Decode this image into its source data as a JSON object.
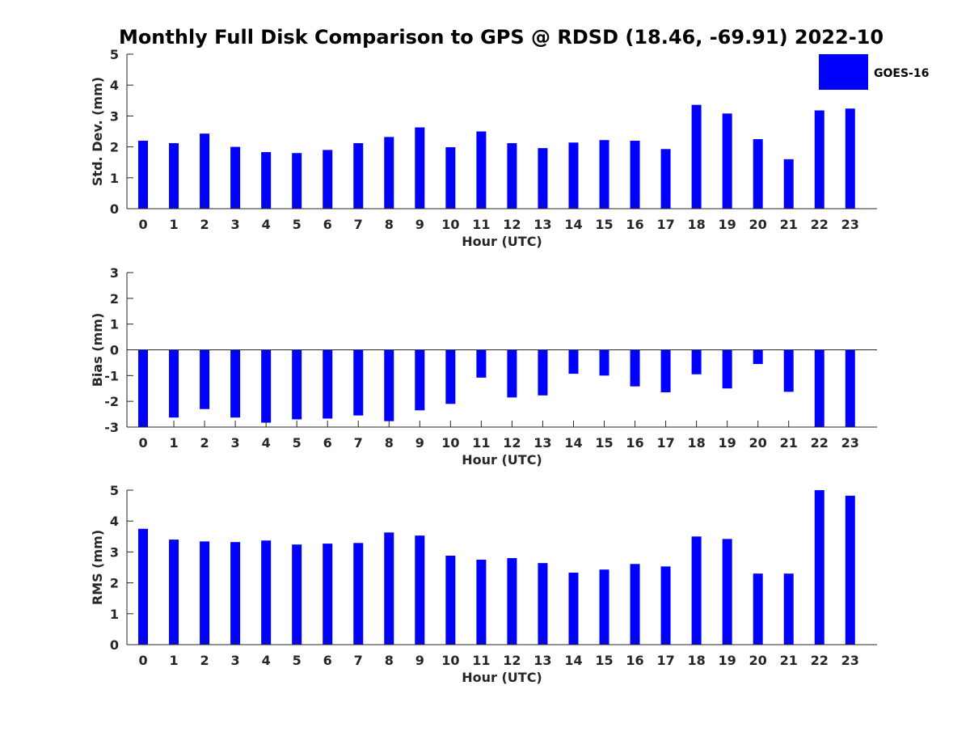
{
  "title": "Monthly Full Disk Comparison to GPS @ RDSD (18.46, -69.91) 2022-10",
  "legend": {
    "label": "GOES-16",
    "color": "#0000ff"
  },
  "chart_data": [
    {
      "type": "bar",
      "title": "Monthly Full Disk Comparison to GPS @ RDSD (18.46, -69.91) 2022-10",
      "xlabel": "Hour (UTC)",
      "ylabel": "Std. Dev. (mm)",
      "ylim": [
        0,
        5
      ],
      "yticks": [
        0,
        1,
        2,
        3,
        4,
        5
      ],
      "categories": [
        "0",
        "1",
        "2",
        "3",
        "4",
        "5",
        "6",
        "7",
        "8",
        "9",
        "10",
        "11",
        "12",
        "13",
        "14",
        "15",
        "16",
        "17",
        "18",
        "19",
        "20",
        "21",
        "22",
        "23"
      ],
      "series": [
        {
          "name": "GOES-16",
          "color": "#0000ff",
          "values": [
            2.2,
            2.12,
            2.43,
            2.0,
            1.83,
            1.8,
            1.9,
            2.12,
            2.32,
            2.63,
            1.99,
            2.5,
            2.12,
            1.96,
            2.14,
            2.22,
            2.2,
            1.93,
            3.36,
            3.08,
            2.25,
            1.6,
            3.18,
            3.24
          ]
        }
      ],
      "legend": "top-right",
      "grid": false
    },
    {
      "type": "bar",
      "xlabel": "Hour (UTC)",
      "ylabel": "Bias (mm)",
      "ylim": [
        -3,
        3
      ],
      "yticks": [
        -3,
        -2,
        -1,
        0,
        1,
        2,
        3
      ],
      "categories": [
        "0",
        "1",
        "2",
        "3",
        "4",
        "5",
        "6",
        "7",
        "8",
        "9",
        "10",
        "11",
        "12",
        "13",
        "14",
        "15",
        "16",
        "17",
        "18",
        "19",
        "20",
        "21",
        "22",
        "23"
      ],
      "series": [
        {
          "name": "GOES-16",
          "color": "#0000ff",
          "values": [
            -3.0,
            -2.63,
            -2.3,
            -2.63,
            -2.83,
            -2.7,
            -2.67,
            -2.55,
            -2.77,
            -2.35,
            -2.1,
            -1.08,
            -1.85,
            -1.77,
            -0.93,
            -1.0,
            -1.42,
            -1.65,
            -0.95,
            -1.5,
            -0.55,
            -1.63,
            -3.0,
            -3.0
          ]
        }
      ],
      "grid": false
    },
    {
      "type": "bar",
      "xlabel": "Hour (UTC)",
      "ylabel": "RMS (mm)",
      "ylim": [
        0,
        5
      ],
      "yticks": [
        0,
        1,
        2,
        3,
        4,
        5
      ],
      "categories": [
        "0",
        "1",
        "2",
        "3",
        "4",
        "5",
        "6",
        "7",
        "8",
        "9",
        "10",
        "11",
        "12",
        "13",
        "14",
        "15",
        "16",
        "17",
        "18",
        "19",
        "20",
        "21",
        "22",
        "23"
      ],
      "series": [
        {
          "name": "GOES-16",
          "color": "#0000ff",
          "values": [
            3.75,
            3.4,
            3.34,
            3.32,
            3.37,
            3.24,
            3.27,
            3.29,
            3.63,
            3.53,
            2.88,
            2.75,
            2.8,
            2.64,
            2.33,
            2.43,
            2.61,
            2.53,
            3.5,
            3.42,
            2.3,
            2.3,
            5.0,
            4.82
          ]
        }
      ],
      "grid": false
    }
  ]
}
